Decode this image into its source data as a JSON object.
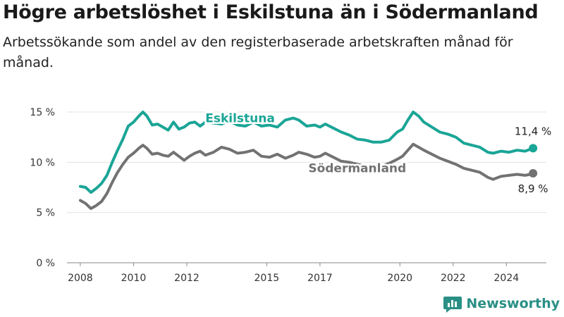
{
  "title": "Högre arbetslöshet i Eskilstuna än i Södermanland",
  "subtitle": "Arbetssökande som andel av den registerbaserade arbetskraften månad för månad.",
  "brand": {
    "name": "Newsworthy",
    "color": "#2a8f85"
  },
  "chart_data": {
    "type": "line",
    "ylim": [
      0,
      15
    ],
    "xlim": [
      2007.5,
      2025.5
    ],
    "grid": "horizontal",
    "y_ticks": [
      {
        "value": 0,
        "label": "0 %"
      },
      {
        "value": 5,
        "label": "5 %"
      },
      {
        "value": 10,
        "label": "10 %"
      },
      {
        "value": 15,
        "label": "15 %"
      }
    ],
    "x_ticks": [
      {
        "value": 2008,
        "label": "2008"
      },
      {
        "value": 2010,
        "label": "2010"
      },
      {
        "value": 2012,
        "label": "2012"
      },
      {
        "value": 2015,
        "label": "2015"
      },
      {
        "value": 2017,
        "label": "2017"
      },
      {
        "value": 2020,
        "label": "2020"
      },
      {
        "value": 2022,
        "label": "2022"
      },
      {
        "value": 2024,
        "label": "2024"
      }
    ],
    "series": [
      {
        "name": "Eskilstuna",
        "color": "#1aa596",
        "end_label": "11,4 %",
        "points": [
          [
            2008.0,
            7.6
          ],
          [
            2008.2,
            7.5
          ],
          [
            2008.4,
            7.0
          ],
          [
            2008.6,
            7.4
          ],
          [
            2008.8,
            7.9
          ],
          [
            2009.0,
            8.7
          ],
          [
            2009.2,
            10.0
          ],
          [
            2009.4,
            11.2
          ],
          [
            2009.6,
            12.3
          ],
          [
            2009.8,
            13.6
          ],
          [
            2010.0,
            14.0
          ],
          [
            2010.2,
            14.6
          ],
          [
            2010.35,
            15.0
          ],
          [
            2010.5,
            14.6
          ],
          [
            2010.7,
            13.7
          ],
          [
            2010.9,
            13.8
          ],
          [
            2011.1,
            13.5
          ],
          [
            2011.3,
            13.2
          ],
          [
            2011.5,
            14.0
          ],
          [
            2011.7,
            13.3
          ],
          [
            2011.9,
            13.5
          ],
          [
            2012.1,
            13.9
          ],
          [
            2012.3,
            14.0
          ],
          [
            2012.5,
            13.6
          ],
          [
            2012.7,
            14.0
          ],
          [
            2013.0,
            13.9
          ],
          [
            2013.3,
            13.8
          ],
          [
            2013.6,
            14.1
          ],
          [
            2013.9,
            13.7
          ],
          [
            2014.2,
            13.6
          ],
          [
            2014.5,
            14.0
          ],
          [
            2014.8,
            13.6
          ],
          [
            2015.1,
            13.7
          ],
          [
            2015.4,
            13.5
          ],
          [
            2015.7,
            14.2
          ],
          [
            2016.0,
            14.4
          ],
          [
            2016.2,
            14.2
          ],
          [
            2016.5,
            13.6
          ],
          [
            2016.8,
            13.7
          ],
          [
            2017.0,
            13.5
          ],
          [
            2017.2,
            13.8
          ],
          [
            2017.5,
            13.4
          ],
          [
            2017.8,
            13.0
          ],
          [
            2018.1,
            12.7
          ],
          [
            2018.4,
            12.3
          ],
          [
            2018.7,
            12.2
          ],
          [
            2019.0,
            12.0
          ],
          [
            2019.3,
            12.0
          ],
          [
            2019.6,
            12.2
          ],
          [
            2019.9,
            13.0
          ],
          [
            2020.1,
            13.3
          ],
          [
            2020.3,
            14.2
          ],
          [
            2020.5,
            15.0
          ],
          [
            2020.7,
            14.6
          ],
          [
            2020.9,
            14.0
          ],
          [
            2021.2,
            13.5
          ],
          [
            2021.5,
            13.0
          ],
          [
            2021.8,
            12.8
          ],
          [
            2022.1,
            12.5
          ],
          [
            2022.4,
            11.9
          ],
          [
            2022.7,
            11.7
          ],
          [
            2023.0,
            11.5
          ],
          [
            2023.3,
            11.0
          ],
          [
            2023.5,
            10.9
          ],
          [
            2023.8,
            11.1
          ],
          [
            2024.1,
            11.0
          ],
          [
            2024.4,
            11.2
          ],
          [
            2024.7,
            11.1
          ],
          [
            2024.9,
            11.3
          ],
          [
            2025.0,
            11.4
          ]
        ]
      },
      {
        "name": "Södermanland",
        "color": "#727272",
        "end_label": "8,9 %",
        "points": [
          [
            2008.0,
            6.2
          ],
          [
            2008.2,
            5.9
          ],
          [
            2008.4,
            5.4
          ],
          [
            2008.6,
            5.7
          ],
          [
            2008.8,
            6.1
          ],
          [
            2009.0,
            6.9
          ],
          [
            2009.2,
            8.0
          ],
          [
            2009.4,
            9.0
          ],
          [
            2009.6,
            9.8
          ],
          [
            2009.8,
            10.5
          ],
          [
            2010.0,
            10.9
          ],
          [
            2010.2,
            11.4
          ],
          [
            2010.35,
            11.7
          ],
          [
            2010.5,
            11.4
          ],
          [
            2010.7,
            10.8
          ],
          [
            2010.9,
            10.9
          ],
          [
            2011.1,
            10.7
          ],
          [
            2011.3,
            10.6
          ],
          [
            2011.5,
            11.0
          ],
          [
            2011.7,
            10.6
          ],
          [
            2011.9,
            10.2
          ],
          [
            2012.1,
            10.6
          ],
          [
            2012.3,
            10.9
          ],
          [
            2012.5,
            11.1
          ],
          [
            2012.7,
            10.7
          ],
          [
            2013.0,
            11.0
          ],
          [
            2013.3,
            11.5
          ],
          [
            2013.6,
            11.3
          ],
          [
            2013.9,
            10.9
          ],
          [
            2014.2,
            11.0
          ],
          [
            2014.5,
            11.2
          ],
          [
            2014.8,
            10.6
          ],
          [
            2015.1,
            10.5
          ],
          [
            2015.4,
            10.8
          ],
          [
            2015.7,
            10.4
          ],
          [
            2016.0,
            10.7
          ],
          [
            2016.2,
            11.0
          ],
          [
            2016.5,
            10.8
          ],
          [
            2016.8,
            10.5
          ],
          [
            2017.0,
            10.6
          ],
          [
            2017.2,
            10.9
          ],
          [
            2017.5,
            10.5
          ],
          [
            2017.8,
            10.1
          ],
          [
            2018.1,
            10.0
          ],
          [
            2018.4,
            9.8
          ],
          [
            2018.7,
            9.6
          ],
          [
            2019.0,
            9.5
          ],
          [
            2019.3,
            9.6
          ],
          [
            2019.6,
            9.9
          ],
          [
            2019.9,
            10.3
          ],
          [
            2020.1,
            10.6
          ],
          [
            2020.3,
            11.2
          ],
          [
            2020.5,
            11.8
          ],
          [
            2020.7,
            11.5
          ],
          [
            2020.9,
            11.2
          ],
          [
            2021.2,
            10.8
          ],
          [
            2021.5,
            10.4
          ],
          [
            2021.8,
            10.1
          ],
          [
            2022.1,
            9.8
          ],
          [
            2022.4,
            9.4
          ],
          [
            2022.7,
            9.2
          ],
          [
            2023.0,
            9.0
          ],
          [
            2023.3,
            8.5
          ],
          [
            2023.5,
            8.3
          ],
          [
            2023.8,
            8.6
          ],
          [
            2024.1,
            8.7
          ],
          [
            2024.4,
            8.8
          ],
          [
            2024.7,
            8.7
          ],
          [
            2024.9,
            8.8
          ],
          [
            2025.0,
            8.9
          ]
        ]
      }
    ],
    "series_labels": [
      {
        "series": "Eskilstuna",
        "x": 2014.0,
        "y": 14.0
      },
      {
        "series": "Södermanland",
        "x": 2018.4,
        "y": 9.0
      }
    ]
  }
}
